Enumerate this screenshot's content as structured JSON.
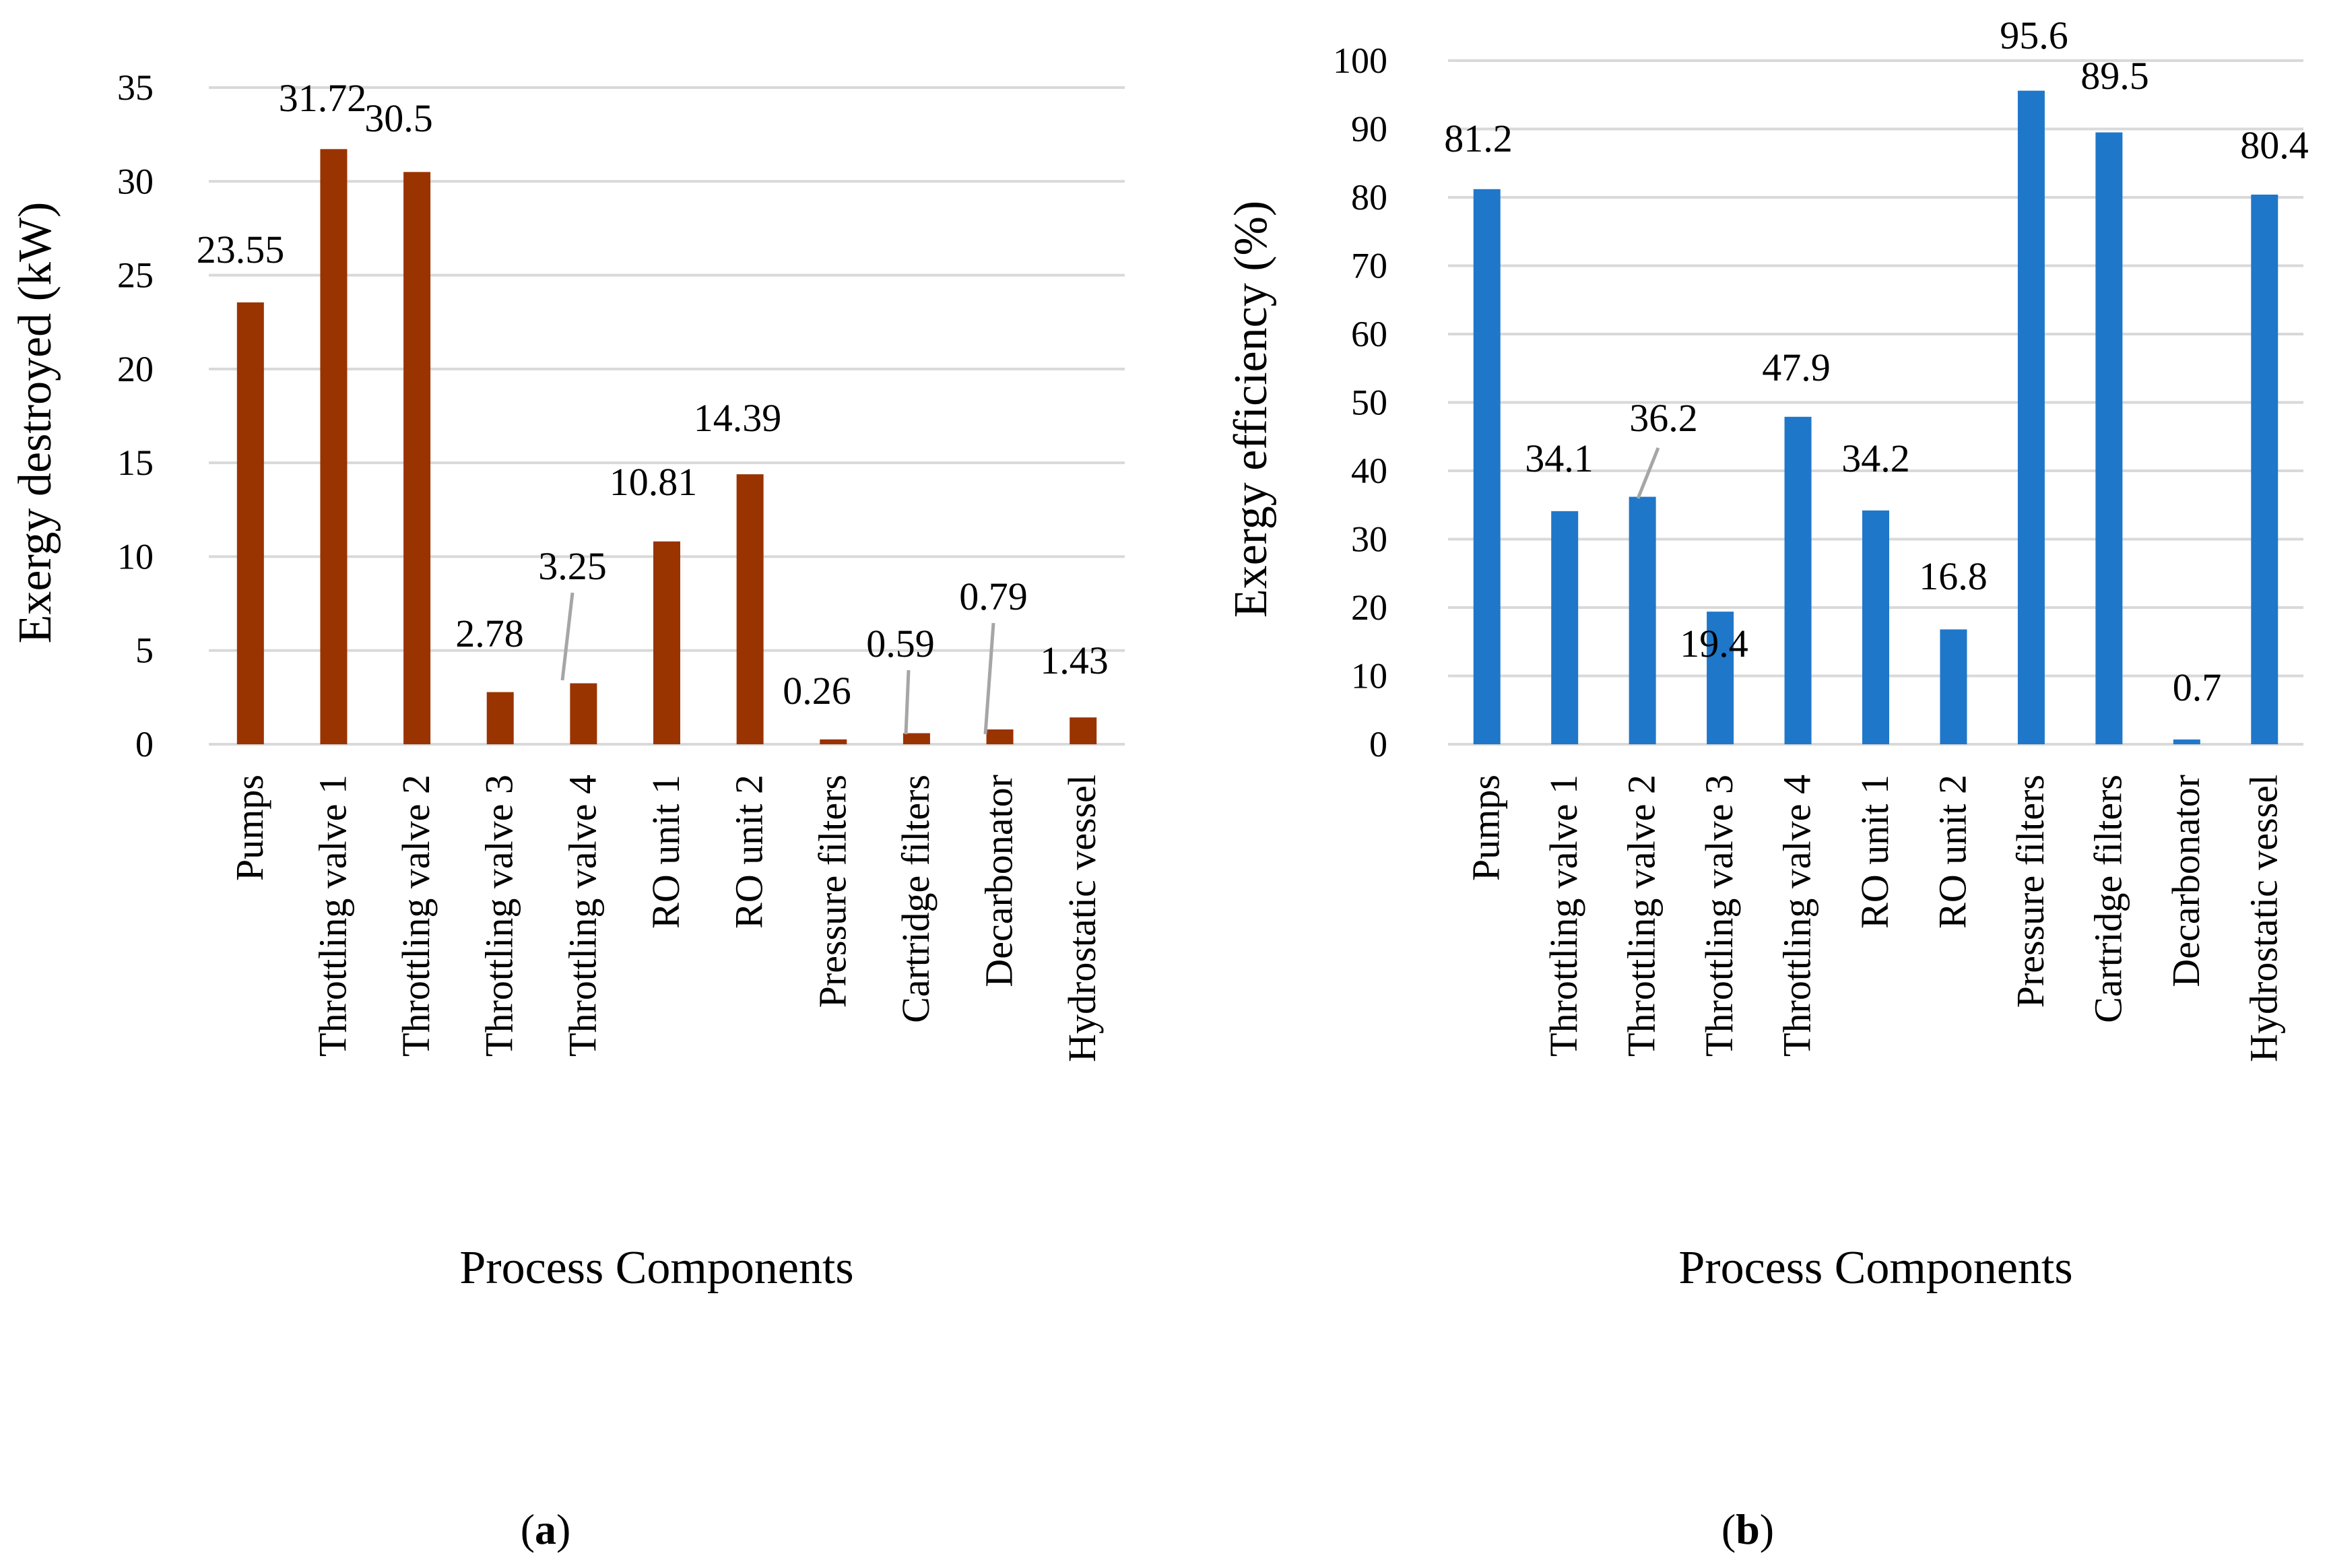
{
  "chart_data": [
    {
      "type": "bar",
      "panel_label_open": "(",
      "panel_label_letter": "a",
      "panel_label_close": ")",
      "ylabel": "Exergy destroyed (kW)",
      "xlabel": "Process Components",
      "ylim": [
        0,
        35
      ],
      "yticks": [
        0,
        5,
        10,
        15,
        20,
        25,
        30,
        35
      ],
      "grid": true,
      "color": "#993300",
      "categories": [
        "Pumps",
        "Throttling valve 1",
        "Throttling valve 2",
        "Throttling valve 3",
        "Throttling valve 4",
        "RO unit 1",
        "RO unit 2",
        "Pressure filters",
        "Cartridge filters",
        "Decarbonator",
        "Hydrostatic vessel"
      ],
      "values": [
        23.55,
        31.72,
        30.5,
        2.78,
        3.25,
        10.81,
        14.39,
        0.26,
        0.59,
        0.79,
        1.43
      ],
      "value_labels": [
        "23.55",
        "31.72",
        "30.5",
        "2.78",
        "3.25",
        "10.81",
        "14.39",
        "0.26",
        "0.59",
        "0.79",
        "1.43"
      ]
    },
    {
      "type": "bar",
      "panel_label_open": "(",
      "panel_label_letter": "b",
      "panel_label_close": ")",
      "ylabel": "Exergy efficiency (%)",
      "xlabel": "Process Components",
      "ylim": [
        0,
        100
      ],
      "yticks": [
        0,
        10,
        20,
        30,
        40,
        50,
        60,
        70,
        80,
        90,
        100
      ],
      "grid": true,
      "color": "#1f77c9",
      "categories": [
        "Pumps",
        "Throttling valve 1",
        "Throttling valve 2",
        "Throttling valve 3",
        "Throttling valve 4",
        "RO unit 1",
        "RO unit 2",
        "Pressure filters",
        "Cartridge filters",
        "Decarbonator",
        "Hydrostatic vessel"
      ],
      "values": [
        81.2,
        34.1,
        36.2,
        19.4,
        47.9,
        34.2,
        16.8,
        95.6,
        89.5,
        0.7,
        80.4
      ],
      "value_labels": [
        "81.2",
        "34.1",
        "36.2",
        "19.4",
        "47.9",
        "34.2",
        "16.8",
        "95.6",
        "89.5",
        "0.7",
        "80.4"
      ]
    }
  ]
}
